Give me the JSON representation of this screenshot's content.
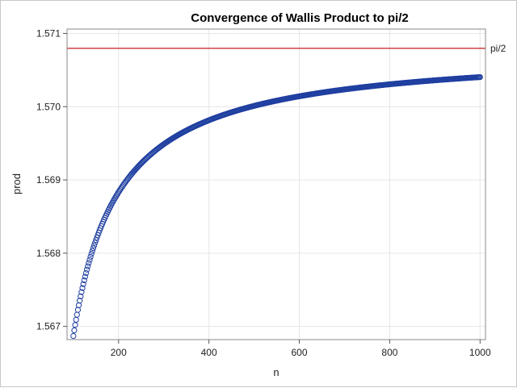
{
  "chart_data": {
    "type": "scatter",
    "title": "Convergence of Wallis Product to pi/2",
    "xlabel": "n",
    "ylabel": "prod",
    "xlim": [
      86,
      1012
    ],
    "ylim": [
      1.56682,
      1.57106
    ],
    "xticks": [
      200,
      400,
      600,
      800,
      1000
    ],
    "yticks": [
      1.567,
      1.568,
      1.569,
      1.57,
      1.571
    ],
    "ytick_labels": [
      "1.567",
      "1.568",
      "1.569",
      "1.570",
      "1.571"
    ],
    "xtick_labels": [
      "200",
      "400",
      "600",
      "800",
      "1000"
    ],
    "grid": true,
    "series": [
      {
        "name": "prod",
        "marker": "open-circle",
        "color": "#1f3fa0",
        "x_start": 100,
        "x_end": 1000,
        "x_step": 2,
        "formula": "pi/2 * (1 - 1/(4n))",
        "sample_points": [
          [
            100,
            1.56688
          ],
          [
            200,
            1.56883
          ],
          [
            400,
            1.56981
          ],
          [
            600,
            1.57014
          ],
          [
            800,
            1.5703
          ],
          [
            1000,
            1.5704
          ]
        ]
      }
    ],
    "reference_line": {
      "label": "pi/2",
      "value": 1.5707963,
      "color": "#c00000"
    }
  }
}
